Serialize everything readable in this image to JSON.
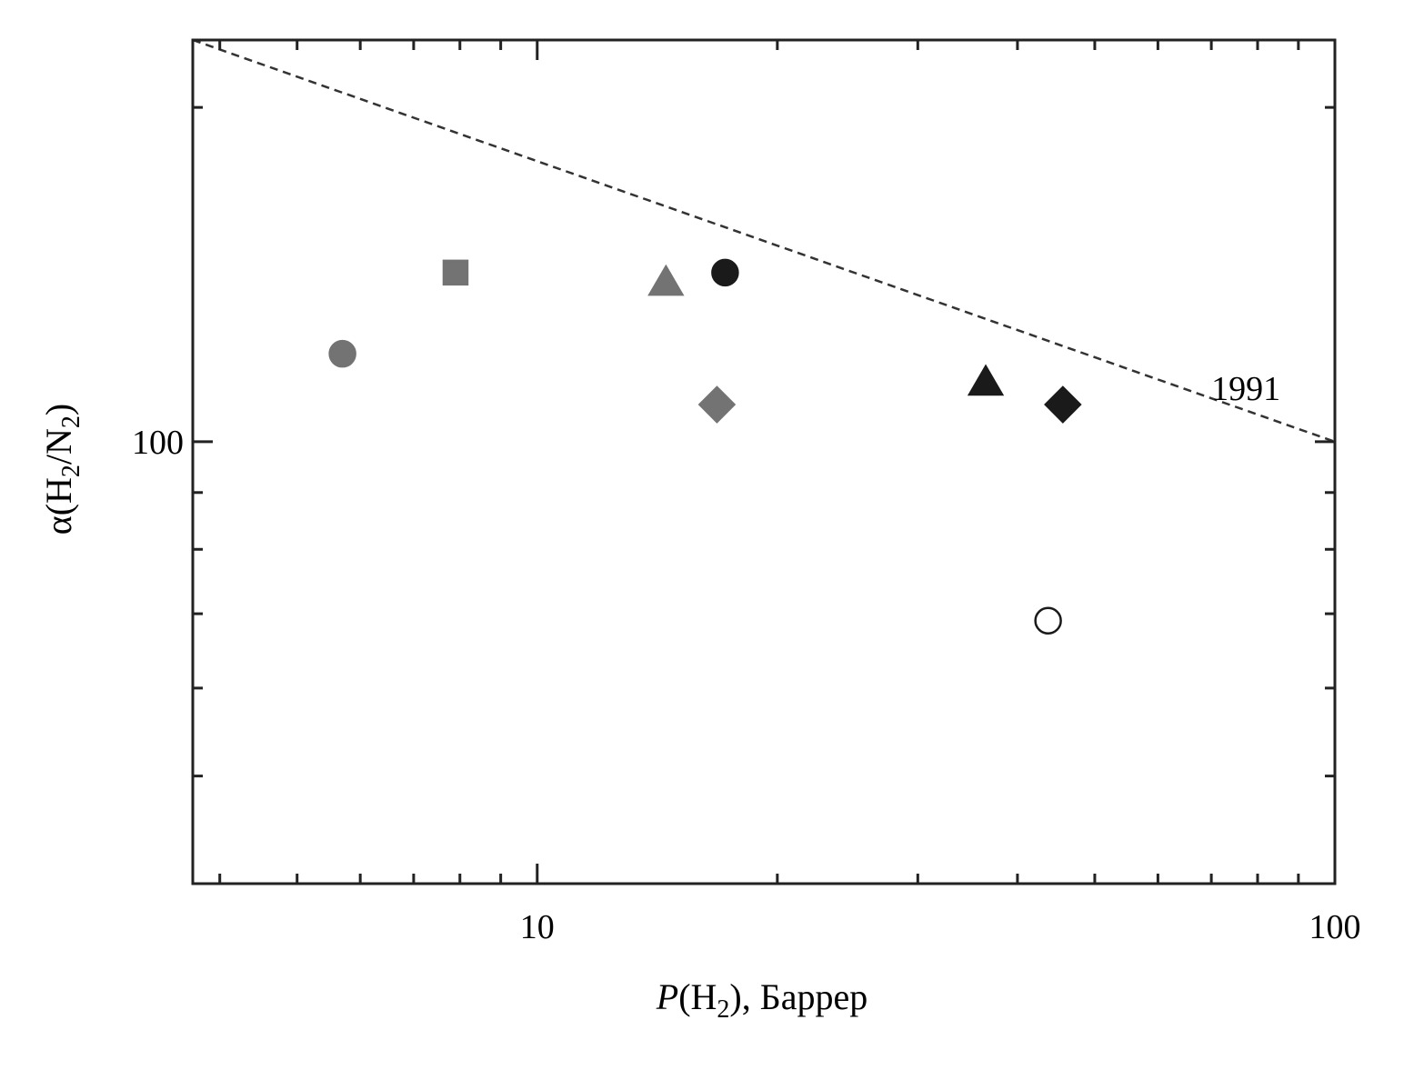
{
  "chart_data": {
    "type": "scatter",
    "x_scale": "log",
    "y_scale": "log",
    "xlim": [
      3.7,
      100
    ],
    "ylim": [
      40,
      230
    ],
    "x_ticks": [
      {
        "value": 10,
        "label": "10"
      },
      {
        "value": 100,
        "label": "100"
      }
    ],
    "y_ticks": [
      {
        "value": 100,
        "label": "100"
      }
    ],
    "xlabel": {
      "main": "P",
      "paren_open": "(H",
      "sub": "2",
      "paren_close": "), Баррер"
    },
    "ylabel": {
      "a": "α(H",
      "sub1": "2",
      "b": "/N",
      "sub2": "2",
      "c": ")"
    },
    "grid": false,
    "points": [
      {
        "x": 5.7,
        "y": 120,
        "marker": "circle",
        "fill": "#737373",
        "stroke": "#737373"
      },
      {
        "x": 7.9,
        "y": 142,
        "marker": "square",
        "fill": "#737373",
        "stroke": "#737373"
      },
      {
        "x": 14.5,
        "y": 139,
        "marker": "triangle",
        "fill": "#737373",
        "stroke": "#737373"
      },
      {
        "x": 16.8,
        "y": 108,
        "marker": "diamond",
        "fill": "#737373",
        "stroke": "#737373"
      },
      {
        "x": 17.2,
        "y": 142,
        "marker": "circle",
        "fill": "#1a1a1a",
        "stroke": "#1a1a1a"
      },
      {
        "x": 36.5,
        "y": 113,
        "marker": "triangle",
        "fill": "#1a1a1a",
        "stroke": "#1a1a1a"
      },
      {
        "x": 45.6,
        "y": 108,
        "marker": "diamond",
        "fill": "#1a1a1a",
        "stroke": "#1a1a1a"
      },
      {
        "x": 43.7,
        "y": 69,
        "marker": "circle",
        "fill": "#ffffff",
        "stroke": "#1a1a1a"
      }
    ],
    "lines": [
      {
        "name": "1991",
        "style": "dashed",
        "points": [
          [
            3.7,
            230
          ],
          [
            100,
            100
          ]
        ]
      }
    ],
    "annotations": [
      {
        "text": "1991",
        "x": 70,
        "y": 112
      }
    ]
  }
}
